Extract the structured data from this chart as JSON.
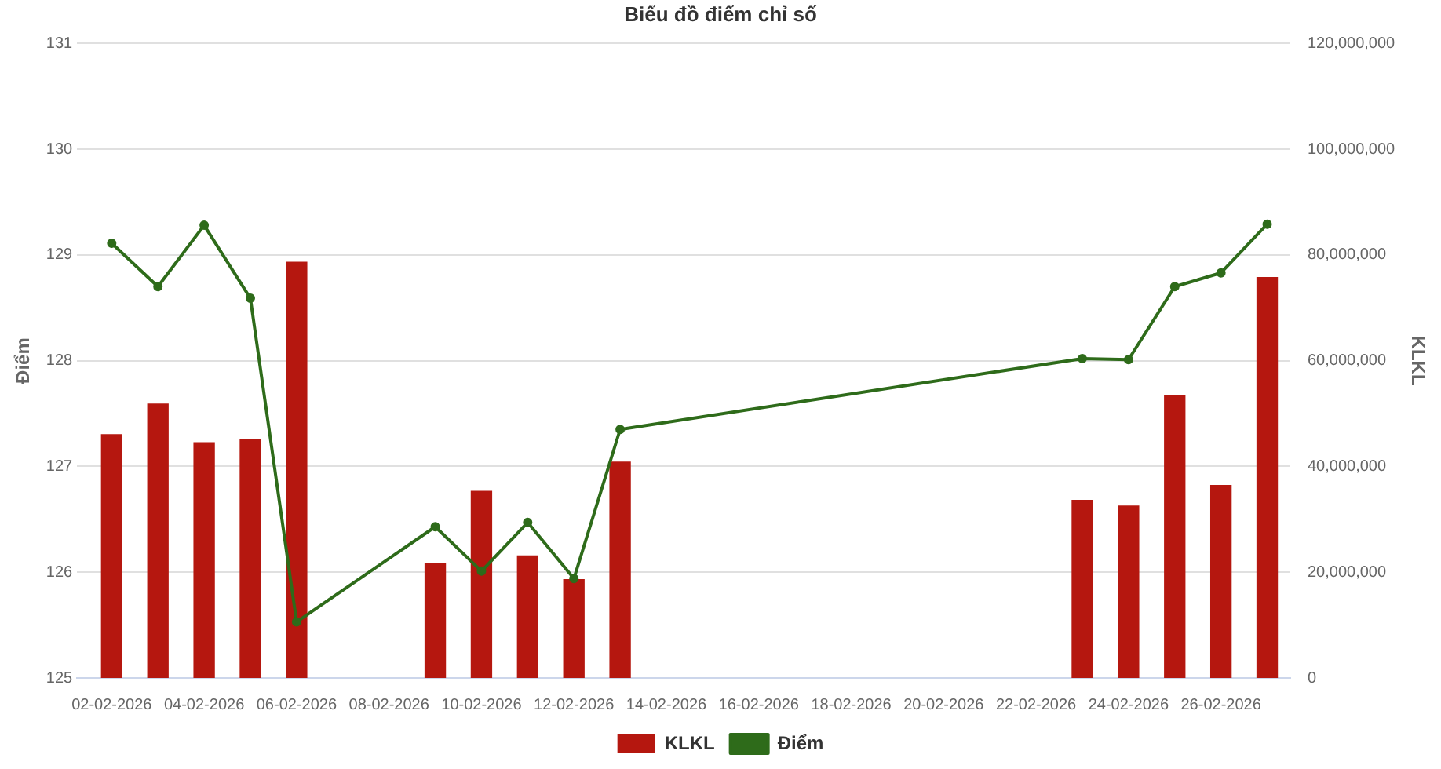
{
  "chart_data": {
    "type": "bar",
    "title": "Biểu đồ điểm chỉ số",
    "ylabel": "Điểm",
    "y2label": "KLKL",
    "x": [
      "2026-02-02",
      "2026-02-03",
      "2026-02-04",
      "2026-02-05",
      "2026-02-06",
      "2026-02-09",
      "2026-02-10",
      "2026-02-11",
      "2026-02-12",
      "2026-02-13",
      "2026-02-23",
      "2026-02-24",
      "2026-02-25",
      "2026-02-26",
      "2026-02-27"
    ],
    "series": [
      {
        "name": "KLKL",
        "axis": "y2",
        "color": "#b5170f",
        "values": [
          46000000,
          51800000,
          44500000,
          45100000,
          78600000,
          21600000,
          35300000,
          23100000,
          18600000,
          40800000,
          33600000,
          32500000,
          53400000,
          36400000,
          75700000
        ]
      },
      {
        "name": "Điểm",
        "type": "line",
        "color": "#2e6b1a",
        "marker": "circle",
        "values": [
          129.11,
          128.7,
          129.28,
          128.59,
          125.53,
          126.43,
          126.01,
          126.47,
          125.94,
          127.35,
          128.02,
          128.01,
          128.7,
          128.83,
          129.29
        ]
      }
    ],
    "xlim": [
      "2026-02-01T06:00",
      "2026-02-27T12:00"
    ],
    "xticks": [
      {
        "value": "2026-02-02",
        "label": "02-02-2026"
      },
      {
        "value": "2026-02-04",
        "label": "04-02-2026"
      },
      {
        "value": "2026-02-06",
        "label": "06-02-2026"
      },
      {
        "value": "2026-02-08",
        "label": "08-02-2026"
      },
      {
        "value": "2026-02-10",
        "label": "10-02-2026"
      },
      {
        "value": "2026-02-12",
        "label": "12-02-2026"
      },
      {
        "value": "2026-02-14",
        "label": "14-02-2026"
      },
      {
        "value": "2026-02-16",
        "label": "16-02-2026"
      },
      {
        "value": "2026-02-18",
        "label": "18-02-2026"
      },
      {
        "value": "2026-02-20",
        "label": "20-02-2026"
      },
      {
        "value": "2026-02-22",
        "label": "22-02-2026"
      },
      {
        "value": "2026-02-24",
        "label": "24-02-2026"
      },
      {
        "value": "2026-02-26",
        "label": "26-02-2026"
      }
    ],
    "ylim": [
      125,
      131
    ],
    "yticks": [
      125,
      126,
      127,
      128,
      129,
      130,
      131
    ],
    "y2lim": [
      0,
      120000000
    ],
    "y2ticks": [
      0,
      {
        "value": 20000000,
        "label": "20,000,000"
      },
      {
        "value": 40000000,
        "label": "40,000,000"
      },
      {
        "value": 60000000,
        "label": "60,000,000"
      },
      {
        "value": 80000000,
        "label": "80,000,000"
      },
      {
        "value": 100000000,
        "label": "100,000,000"
      },
      {
        "value": 120000000,
        "label": "120,000,000"
      }
    ],
    "grid": "y",
    "legend": "bottom"
  }
}
